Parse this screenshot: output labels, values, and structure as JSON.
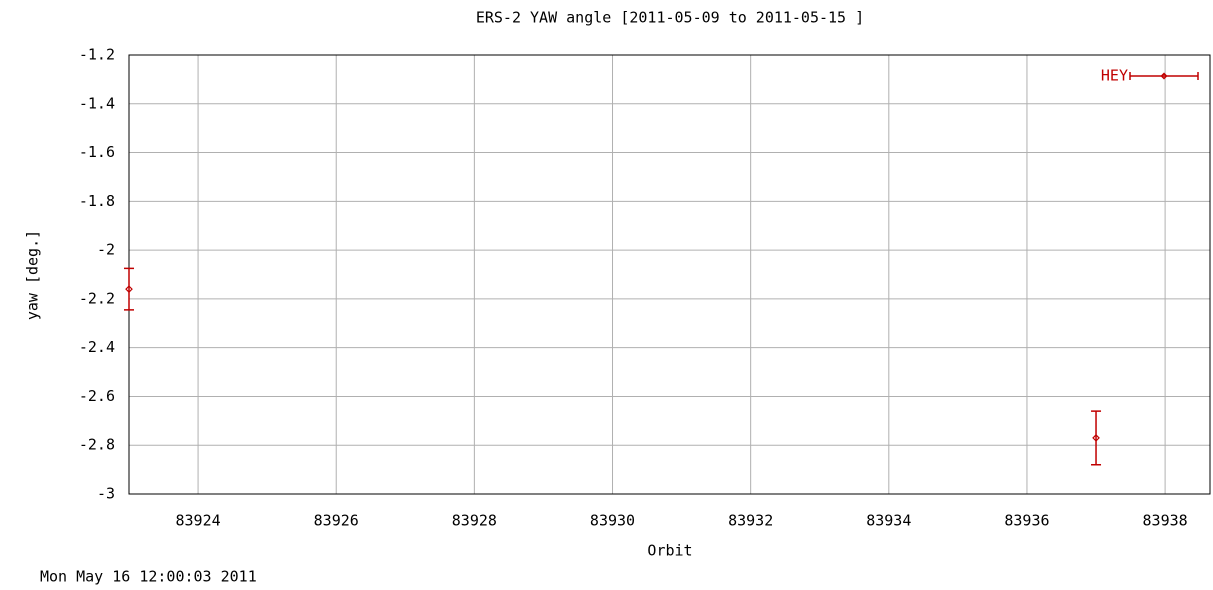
{
  "chart_data": {
    "type": "errorbar",
    "title": "ERS-2 YAW angle [2011-05-09 to 2011-05-15 ]",
    "xlabel": "Orbit",
    "ylabel": "yaw [deg.]",
    "footer": "Mon May 16 12:00:03 2011",
    "series": [
      {
        "name": "HEY",
        "color": "#c00000",
        "x": [
          83923,
          83937
        ],
        "values": [
          -2.16,
          -2.77
        ],
        "errors": [
          0.085,
          0.11
        ]
      }
    ],
    "xlim": [
      83923,
      83938.65
    ],
    "xticks": [
      83924,
      83926,
      83928,
      83930,
      83932,
      83934,
      83936,
      83938
    ],
    "ylim": [
      -3,
      -1.2
    ],
    "yticks": [
      -1.2,
      -1.4,
      -1.6,
      -1.8,
      -2,
      -2.2,
      -2.4,
      -2.6,
      -2.8,
      -3
    ],
    "grid": true,
    "legend": "top-right"
  }
}
